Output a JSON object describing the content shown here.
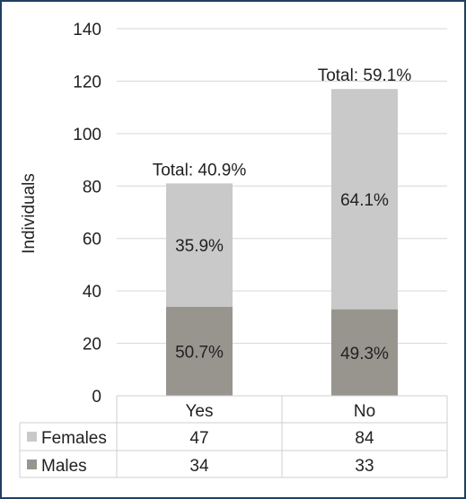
{
  "chart_data": {
    "type": "bar",
    "stacked": true,
    "categories": [
      "Yes",
      "No"
    ],
    "series": [
      {
        "name": "Males",
        "values": [
          34,
          33
        ],
        "labels": [
          "50.7%",
          "49.3%"
        ],
        "color": "#98958f"
      },
      {
        "name": "Females",
        "values": [
          47,
          84
        ],
        "labels": [
          "35.9%",
          "64.1%"
        ],
        "color": "#c9c9c9"
      }
    ],
    "totals": [
      "Total: 40.9%",
      "Total: 59.1%"
    ],
    "ylabel": "Individuals",
    "xlabel": "",
    "ylim": [
      0,
      140
    ],
    "yticks": [
      "0",
      "20",
      "40",
      "60",
      "80",
      "100",
      "120",
      "140"
    ],
    "grid": true,
    "legend": "data-table"
  }
}
